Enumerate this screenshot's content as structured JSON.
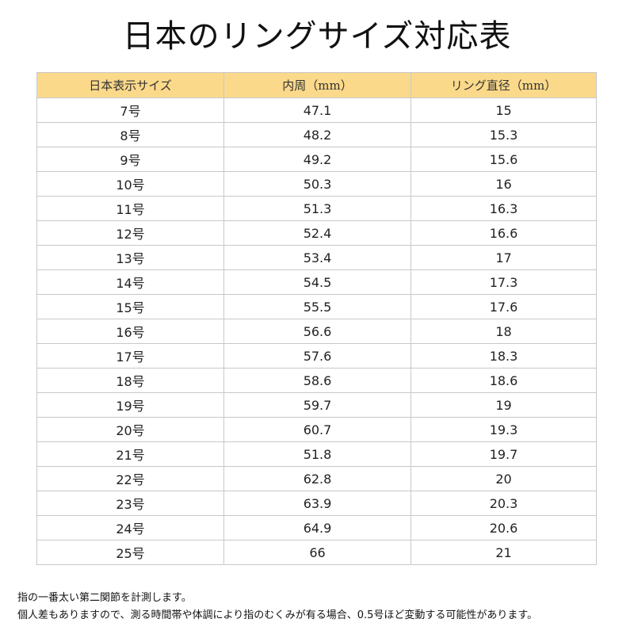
{
  "title": "日本のリングサイズ対応表",
  "table": {
    "headers": [
      "日本表示サイズ",
      "内周（mm）",
      "リング直径（mm）"
    ],
    "rows": [
      [
        "7号",
        "47.1",
        "15"
      ],
      [
        "8号",
        "48.2",
        "15.3"
      ],
      [
        "9号",
        "49.2",
        "15.6"
      ],
      [
        "10号",
        "50.3",
        "16"
      ],
      [
        "11号",
        "51.3",
        "16.3"
      ],
      [
        "12号",
        "52.4",
        "16.6"
      ],
      [
        "13号",
        "53.4",
        "17"
      ],
      [
        "14号",
        "54.5",
        "17.3"
      ],
      [
        "15号",
        "55.5",
        "17.6"
      ],
      [
        "16号",
        "56.6",
        "18"
      ],
      [
        "17号",
        "57.6",
        "18.3"
      ],
      [
        "18号",
        "58.6",
        "18.6"
      ],
      [
        "19号",
        "59.7",
        "19"
      ],
      [
        "20号",
        "60.7",
        "19.3"
      ],
      [
        "21号",
        "51.8",
        "19.7"
      ],
      [
        "22号",
        "62.8",
        "20"
      ],
      [
        "23号",
        "63.9",
        "20.3"
      ],
      [
        "24号",
        "64.9",
        "20.6"
      ],
      [
        "25号",
        "66",
        "21"
      ]
    ]
  },
  "notes": [
    "指の一番太い第二関節を計測します。",
    "個人差もありますので、測る時間帯や体調により指のむくみが有る場合、0.5号ほど変動する可能性があります。"
  ],
  "colors": {
    "header_background": "#fbd98a",
    "border": "#c8c8c8",
    "text": "#222222"
  }
}
